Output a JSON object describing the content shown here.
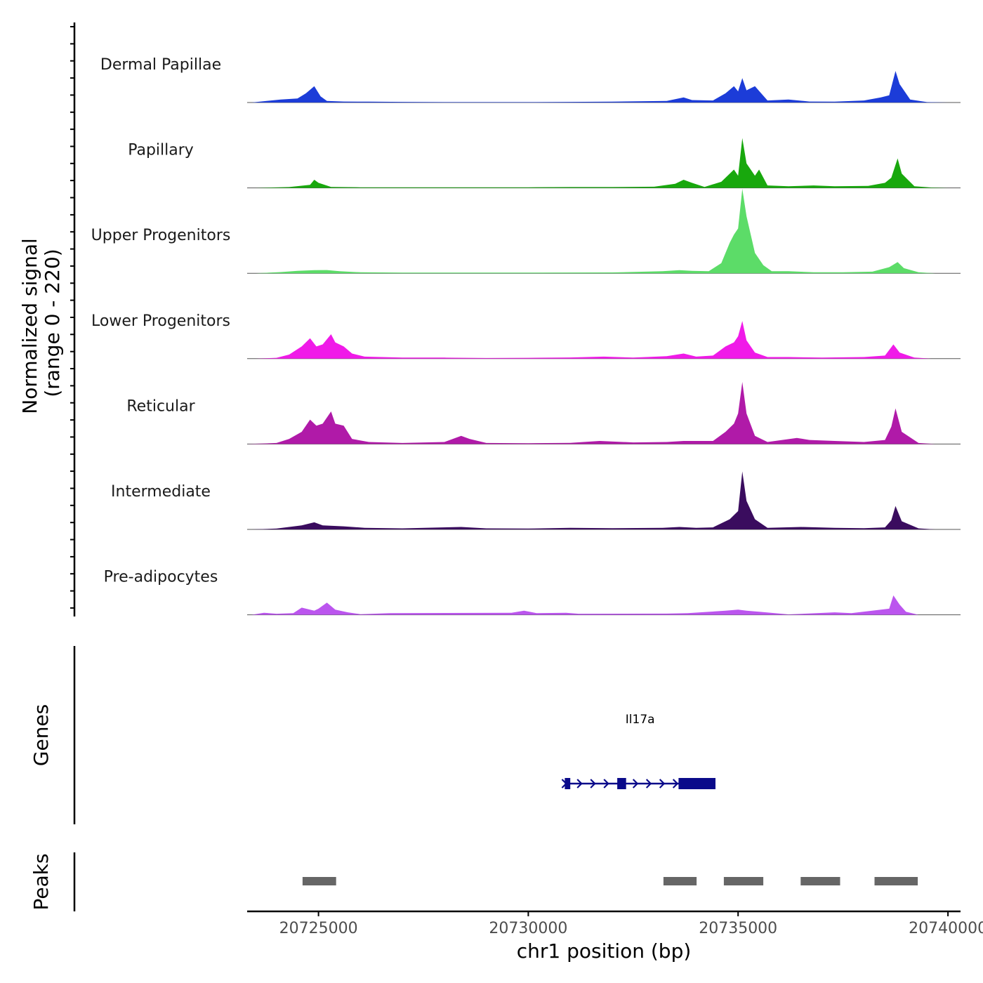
{
  "chart_data": {
    "type": "area",
    "title": "",
    "xlabel": "chr1 position (bp)",
    "ylabel_line1": "Normalized signal",
    "ylabel_line2": "(range 0 - 220)",
    "ylim": [
      0,
      220
    ],
    "xlim": [
      20723300,
      20740300
    ],
    "x_ticks": [
      20725000,
      20730000,
      20735000,
      20740000
    ],
    "x_tick_labels": [
      "20725000",
      "20730000",
      "20735000",
      "20740000"
    ],
    "series": [
      {
        "name": "Dermal Papillae",
        "color": "#1c3cd8",
        "points": [
          [
            20723400,
            0
          ],
          [
            20724100,
            15
          ],
          [
            20724500,
            20
          ],
          [
            20724700,
            45
          ],
          [
            20724900,
            80
          ],
          [
            20725050,
            30
          ],
          [
            20725200,
            8
          ],
          [
            20725600,
            5
          ],
          [
            20726200,
            4
          ],
          [
            20727000,
            3
          ],
          [
            20728000,
            2
          ],
          [
            20730000,
            2
          ],
          [
            20731000,
            3
          ],
          [
            20732000,
            4
          ],
          [
            20733300,
            8
          ],
          [
            20733700,
            25
          ],
          [
            20733900,
            12
          ],
          [
            20734400,
            10
          ],
          [
            20734700,
            45
          ],
          [
            20734900,
            80
          ],
          [
            20735000,
            55
          ],
          [
            20735100,
            120
          ],
          [
            20735200,
            60
          ],
          [
            20735400,
            80
          ],
          [
            20735700,
            10
          ],
          [
            20736200,
            15
          ],
          [
            20736700,
            5
          ],
          [
            20737300,
            4
          ],
          [
            20738000,
            10
          ],
          [
            20738400,
            25
          ],
          [
            20738600,
            35
          ],
          [
            20738750,
            155
          ],
          [
            20738850,
            90
          ],
          [
            20739100,
            15
          ],
          [
            20739500,
            2
          ],
          [
            20740000,
            0
          ]
        ]
      },
      {
        "name": "Papillary",
        "color": "#18a80d",
        "points": [
          [
            20723500,
            0
          ],
          [
            20724300,
            4
          ],
          [
            20724800,
            15
          ],
          [
            20724900,
            40
          ],
          [
            20725000,
            25
          ],
          [
            20725300,
            5
          ],
          [
            20726000,
            3
          ],
          [
            20727000,
            3
          ],
          [
            20728000,
            3
          ],
          [
            20730000,
            3
          ],
          [
            20731000,
            4
          ],
          [
            20732000,
            4
          ],
          [
            20733000,
            6
          ],
          [
            20733500,
            20
          ],
          [
            20733700,
            40
          ],
          [
            20733900,
            25
          ],
          [
            20734200,
            5
          ],
          [
            20734600,
            30
          ],
          [
            20734900,
            90
          ],
          [
            20735000,
            60
          ],
          [
            20735100,
            245
          ],
          [
            20735200,
            120
          ],
          [
            20735400,
            60
          ],
          [
            20735500,
            90
          ],
          [
            20735700,
            12
          ],
          [
            20736200,
            8
          ],
          [
            20736800,
            12
          ],
          [
            20737300,
            8
          ],
          [
            20738100,
            10
          ],
          [
            20738500,
            25
          ],
          [
            20738650,
            50
          ],
          [
            20738800,
            145
          ],
          [
            20738900,
            70
          ],
          [
            20739200,
            8
          ],
          [
            20739600,
            2
          ],
          [
            20740000,
            0
          ]
        ]
      },
      {
        "name": "Upper Progenitors",
        "color": "#5cdc68",
        "points": [
          [
            20723500,
            0
          ],
          [
            20724100,
            6
          ],
          [
            20724500,
            12
          ],
          [
            20724900,
            15
          ],
          [
            20725200,
            16
          ],
          [
            20725500,
            10
          ],
          [
            20726000,
            5
          ],
          [
            20727000,
            3
          ],
          [
            20728000,
            3
          ],
          [
            20730000,
            3
          ],
          [
            20732000,
            4
          ],
          [
            20733200,
            10
          ],
          [
            20733600,
            15
          ],
          [
            20733900,
            12
          ],
          [
            20734300,
            10
          ],
          [
            20734600,
            50
          ],
          [
            20734800,
            150
          ],
          [
            20734900,
            190
          ],
          [
            20735000,
            220
          ],
          [
            20735100,
            415
          ],
          [
            20735200,
            280
          ],
          [
            20735400,
            100
          ],
          [
            20735600,
            40
          ],
          [
            20735800,
            10
          ],
          [
            20736200,
            10
          ],
          [
            20736800,
            5
          ],
          [
            20737500,
            5
          ],
          [
            20738200,
            8
          ],
          [
            20738600,
            30
          ],
          [
            20738800,
            55
          ],
          [
            20738950,
            25
          ],
          [
            20739300,
            5
          ],
          [
            20739700,
            0
          ]
        ]
      },
      {
        "name": "Lower Progenitors",
        "color": "#f01ae8",
        "points": [
          [
            20723500,
            0
          ],
          [
            20724000,
            4
          ],
          [
            20724300,
            20
          ],
          [
            20724600,
            60
          ],
          [
            20724800,
            100
          ],
          [
            20724950,
            60
          ],
          [
            20725100,
            70
          ],
          [
            20725300,
            120
          ],
          [
            20725400,
            80
          ],
          [
            20725600,
            60
          ],
          [
            20725800,
            25
          ],
          [
            20726100,
            10
          ],
          [
            20727000,
            5
          ],
          [
            20728000,
            5
          ],
          [
            20729000,
            3
          ],
          [
            20730000,
            4
          ],
          [
            20731000,
            6
          ],
          [
            20731800,
            10
          ],
          [
            20732500,
            5
          ],
          [
            20733300,
            12
          ],
          [
            20733700,
            25
          ],
          [
            20734000,
            10
          ],
          [
            20734400,
            15
          ],
          [
            20734700,
            60
          ],
          [
            20734900,
            80
          ],
          [
            20735000,
            110
          ],
          [
            20735100,
            185
          ],
          [
            20735200,
            90
          ],
          [
            20735400,
            30
          ],
          [
            20735700,
            8
          ],
          [
            20736200,
            8
          ],
          [
            20737000,
            5
          ],
          [
            20738000,
            8
          ],
          [
            20738500,
            15
          ],
          [
            20738700,
            70
          ],
          [
            20738850,
            30
          ],
          [
            20739200,
            5
          ],
          [
            20739600,
            0
          ]
        ]
      },
      {
        "name": "Reticular",
        "color": "#b01aa8",
        "points": [
          [
            20723300,
            0
          ],
          [
            20724000,
            5
          ],
          [
            20724300,
            25
          ],
          [
            20724600,
            60
          ],
          [
            20724800,
            120
          ],
          [
            20724950,
            90
          ],
          [
            20725100,
            100
          ],
          [
            20725300,
            160
          ],
          [
            20725400,
            100
          ],
          [
            20725600,
            90
          ],
          [
            20725800,
            25
          ],
          [
            20726200,
            10
          ],
          [
            20727000,
            5
          ],
          [
            20728000,
            10
          ],
          [
            20728400,
            40
          ],
          [
            20728600,
            25
          ],
          [
            20729000,
            5
          ],
          [
            20730000,
            4
          ],
          [
            20731000,
            6
          ],
          [
            20731700,
            15
          ],
          [
            20732500,
            8
          ],
          [
            20733300,
            10
          ],
          [
            20733700,
            15
          ],
          [
            20734400,
            15
          ],
          [
            20734700,
            60
          ],
          [
            20734900,
            100
          ],
          [
            20735000,
            150
          ],
          [
            20735100,
            305
          ],
          [
            20735200,
            150
          ],
          [
            20735400,
            40
          ],
          [
            20735700,
            10
          ],
          [
            20736400,
            30
          ],
          [
            20736700,
            20
          ],
          [
            20737300,
            15
          ],
          [
            20738000,
            10
          ],
          [
            20738500,
            20
          ],
          [
            20738650,
            85
          ],
          [
            20738750,
            175
          ],
          [
            20738900,
            60
          ],
          [
            20739300,
            5
          ],
          [
            20739700,
            0
          ]
        ]
      },
      {
        "name": "Intermediate",
        "color": "#3a0c5e",
        "points": [
          [
            20723400,
            0
          ],
          [
            20724000,
            4
          ],
          [
            20724600,
            20
          ],
          [
            20724900,
            35
          ],
          [
            20725100,
            20
          ],
          [
            20725600,
            15
          ],
          [
            20726100,
            8
          ],
          [
            20727000,
            5
          ],
          [
            20728400,
            12
          ],
          [
            20729000,
            5
          ],
          [
            20730000,
            4
          ],
          [
            20731000,
            8
          ],
          [
            20732000,
            6
          ],
          [
            20733200,
            8
          ],
          [
            20733600,
            12
          ],
          [
            20734000,
            8
          ],
          [
            20734400,
            10
          ],
          [
            20734800,
            50
          ],
          [
            20735000,
            90
          ],
          [
            20735100,
            285
          ],
          [
            20735200,
            140
          ],
          [
            20735400,
            50
          ],
          [
            20735700,
            8
          ],
          [
            20736500,
            12
          ],
          [
            20737300,
            8
          ],
          [
            20738000,
            6
          ],
          [
            20738500,
            10
          ],
          [
            20738650,
            45
          ],
          [
            20738750,
            115
          ],
          [
            20738900,
            40
          ],
          [
            20739300,
            5
          ],
          [
            20739700,
            0
          ]
        ]
      },
      {
        "name": "Pre-adipocytes",
        "color": "#bb55ee",
        "points": [
          [
            20723400,
            0
          ],
          [
            20723700,
            10
          ],
          [
            20724000,
            5
          ],
          [
            20724400,
            8
          ],
          [
            20724600,
            35
          ],
          [
            20724900,
            20
          ],
          [
            20725000,
            30
          ],
          [
            20725200,
            60
          ],
          [
            20725400,
            25
          ],
          [
            20725700,
            12
          ],
          [
            20726000,
            3
          ],
          [
            20726700,
            8
          ],
          [
            20729600,
            10
          ],
          [
            20729900,
            20
          ],
          [
            20730200,
            8
          ],
          [
            20730900,
            10
          ],
          [
            20731200,
            5
          ],
          [
            20733300,
            6
          ],
          [
            20733800,
            8
          ],
          [
            20734700,
            20
          ],
          [
            20735000,
            25
          ],
          [
            20735200,
            20
          ],
          [
            20735500,
            15
          ],
          [
            20736200,
            2
          ],
          [
            20737300,
            12
          ],
          [
            20737700,
            8
          ],
          [
            20738600,
            30
          ],
          [
            20738700,
            95
          ],
          [
            20738850,
            50
          ],
          [
            20739000,
            15
          ],
          [
            20739300,
            0
          ]
        ]
      }
    ],
    "genes_track": {
      "label": "Genes",
      "gene_name": "Il17a",
      "gene_color": "#0a0a8a",
      "start": 20730870,
      "end": 20734460,
      "exons": [
        [
          20730870,
          20731000
        ],
        [
          20732120,
          20732330
        ],
        [
          20733580,
          20734460
        ]
      ]
    },
    "peaks_track": {
      "label": "Peaks",
      "color": "#666666",
      "peaks": [
        [
          20724620,
          20725420
        ],
        [
          20733220,
          20734010
        ],
        [
          20734660,
          20735600
        ],
        [
          20736490,
          20737430
        ],
        [
          20738250,
          20739280
        ]
      ]
    }
  }
}
